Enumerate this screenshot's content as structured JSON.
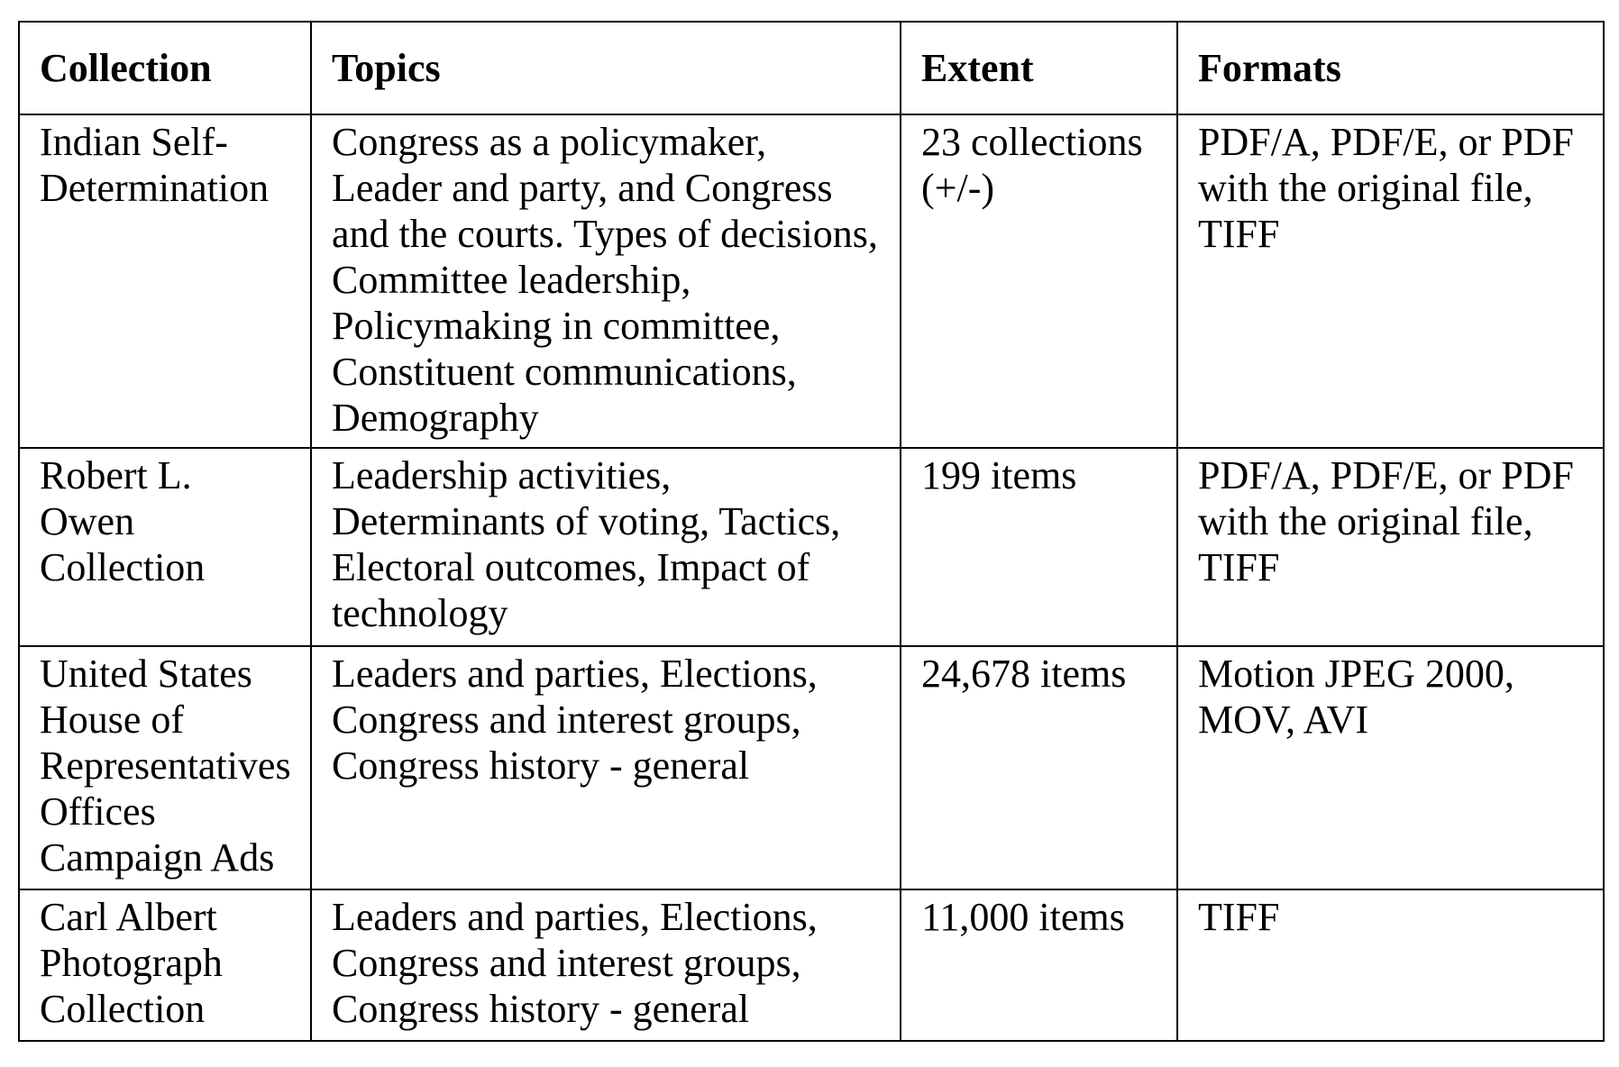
{
  "table": {
    "headers": [
      "Collection",
      "Topics",
      "Extent",
      "Formats"
    ],
    "rows": [
      {
        "collection": "Indian Self-Determination",
        "topics": "Congress as a policymaker, Leader and party, and Congress and the courts. Types of decisions, Committee leadership, Policymaking in committee, Constituent communications, Demography",
        "extent": "23 collections (+/-)",
        "formats": "PDF/A, PDF/E, or PDF with the original file, TIFF"
      },
      {
        "collection": "Robert L. Owen Collection",
        "topics": "Leadership activities, Determinants of voting, Tactics, Electoral outcomes, Impact of technology",
        "extent": "199 items",
        "formats": "PDF/A, PDF/E, or PDF with the original file, TIFF"
      },
      {
        "collection": "United States House of Representatives Offices Campaign Ads",
        "topics": "Leaders and parties, Elections, Congress and interest groups, Congress history - general",
        "extent": "24,678 items",
        "formats": "Motion JPEG 2000, MOV, AVI"
      },
      {
        "collection": "Carl Albert Photograph Collection",
        "topics": "Leaders and parties, Elections, Congress and interest groups, Congress history - general",
        "extent": "11,000 items",
        "formats": "TIFF"
      }
    ]
  }
}
